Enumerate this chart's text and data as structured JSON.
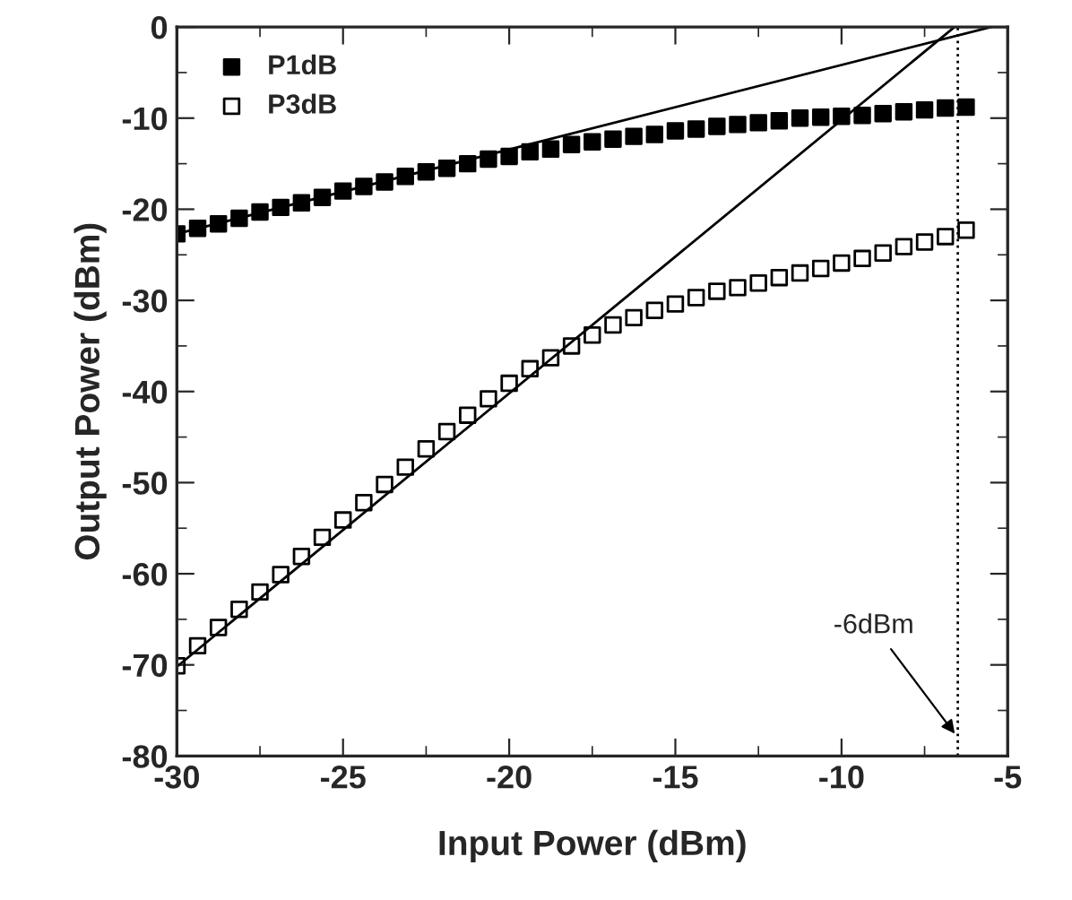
{
  "chart_data": {
    "type": "scatter",
    "xlabel": "Input Power (dBm)",
    "ylabel": "Output Power (dBm)",
    "xlim": [
      -30,
      -5
    ],
    "xticks": [
      -30,
      -25,
      -20,
      -15,
      -10,
      -5
    ],
    "ylim": [
      -80,
      0
    ],
    "yticks": [
      -80,
      -70,
      -60,
      -50,
      -40,
      -30,
      -20,
      -10,
      0
    ],
    "x": [
      -30,
      -29.375,
      -28.75,
      -28.125,
      -27.5,
      -26.875,
      -26.25,
      -25.625,
      -25,
      -24.375,
      -23.75,
      -23.125,
      -22.5,
      -21.875,
      -21.25,
      -20.625,
      -20,
      -19.375,
      -18.75,
      -18.125,
      -17.5,
      -16.875,
      -16.25,
      -15.625,
      -15,
      -14.375,
      -13.75,
      -13.125,
      -12.5,
      -11.875,
      -11.25,
      -10.625,
      -10,
      -9.375,
      -8.75,
      -8.125,
      -7.5,
      -6.875,
      -6.25
    ],
    "legend": "top left",
    "grid": false,
    "marker": "square",
    "series": [
      {
        "name": "P1dB",
        "color": "#000000",
        "values": [
          -22.7,
          -22.1,
          -21.6,
          -21.0,
          -20.3,
          -19.8,
          -19.3,
          -18.7,
          -18.0,
          -17.5,
          -17.0,
          -16.4,
          -15.9,
          -15.5,
          -15.0,
          -14.5,
          -14.2,
          -13.7,
          -13.4,
          -12.9,
          -12.6,
          -12.3,
          -12.0,
          -11.8,
          -11.4,
          -11.2,
          -10.9,
          -10.7,
          -10.5,
          -10.3,
          -10.0,
          -9.9,
          -9.8,
          -9.7,
          -9.5,
          -9.3,
          -9.1,
          -8.9,
          -8.8
        ]
      },
      {
        "name": "P3dB",
        "color": "#000000",
        "values": [
          -70.1,
          -67.9,
          -65.9,
          -63.9,
          -62.0,
          -60.1,
          -58.1,
          -56.0,
          -54.1,
          -52.2,
          -50.2,
          -48.3,
          -46.3,
          -44.4,
          -42.6,
          -40.8,
          -39.1,
          -37.5,
          -36.3,
          -35.0,
          -33.8,
          -32.7,
          -31.9,
          -31.1,
          -30.4,
          -29.7,
          -29.0,
          -28.6,
          -28.1,
          -27.5,
          -27.0,
          -26.5,
          -25.9,
          -25.4,
          -24.8,
          -24.1,
          -23.6,
          -23.0,
          -22.3
        ]
      },
      {
        "type": "line",
        "color": "#000000",
        "marker": "none",
        "x": [
          -30,
          -5.5
        ],
        "values": [
          -22.7,
          0
        ]
      },
      {
        "type": "line",
        "color": "#000000",
        "marker": "none",
        "x": [
          -30,
          -6.6
        ],
        "values": [
          -70.2,
          0
        ]
      }
    ],
    "ref_lines": [
      {
        "axis": "x",
        "value": -6.5,
        "color": "#000000",
        "line_style": "dotted"
      }
    ],
    "annotations": [
      {
        "text": "-6dBm",
        "x": -6.5,
        "y": -78
      }
    ]
  }
}
